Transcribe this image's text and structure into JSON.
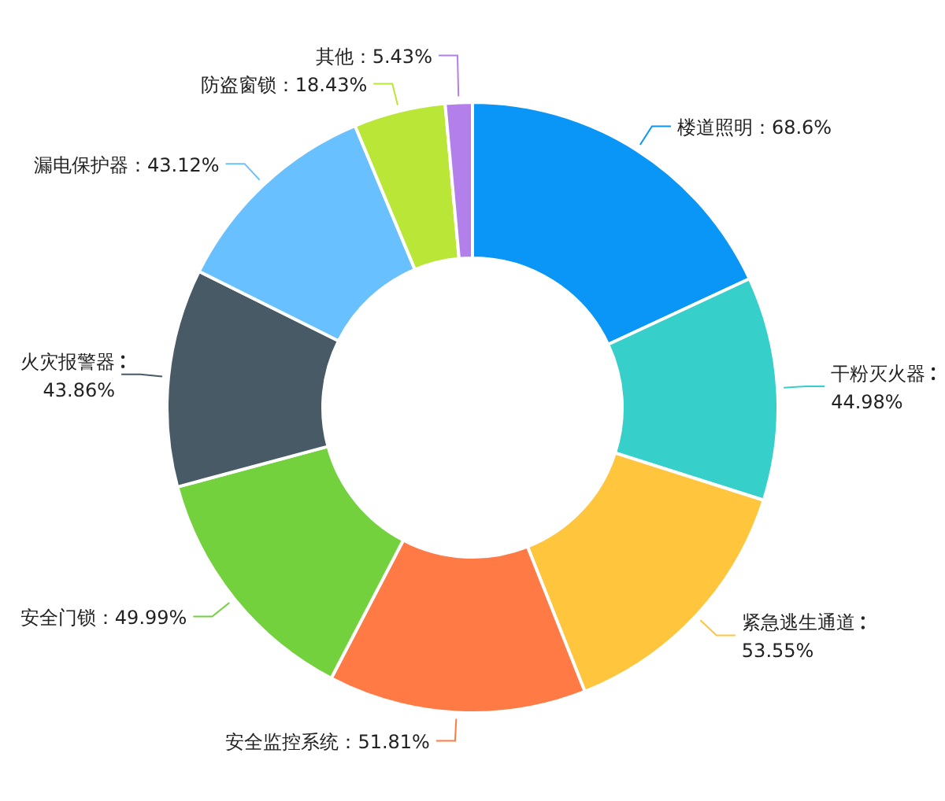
{
  "chart_data": {
    "type": "donut",
    "categories": [
      "楼道照明",
      "干粉灭火器",
      "紧急逃生通道",
      "安全监控系统",
      "安全门锁",
      "火灾报警器",
      "漏电保护器",
      "防盗窗锁",
      "其他"
    ],
    "values": [
      68.6,
      44.98,
      53.55,
      51.81,
      49.99,
      43.86,
      43.12,
      18.43,
      5.43
    ],
    "value_labels": [
      "68.6%",
      "44.98%",
      "53.55%",
      "51.81%",
      "49.99%",
      "43.86%",
      "43.12%",
      "18.43%",
      "5.43%"
    ],
    "colors": [
      "#0a96f7",
      "#36cfc9",
      "#ffc53d",
      "#ff7a45",
      "#73d13d",
      "#475a66",
      "#69c0ff",
      "#bae637",
      "#b37feb"
    ]
  }
}
